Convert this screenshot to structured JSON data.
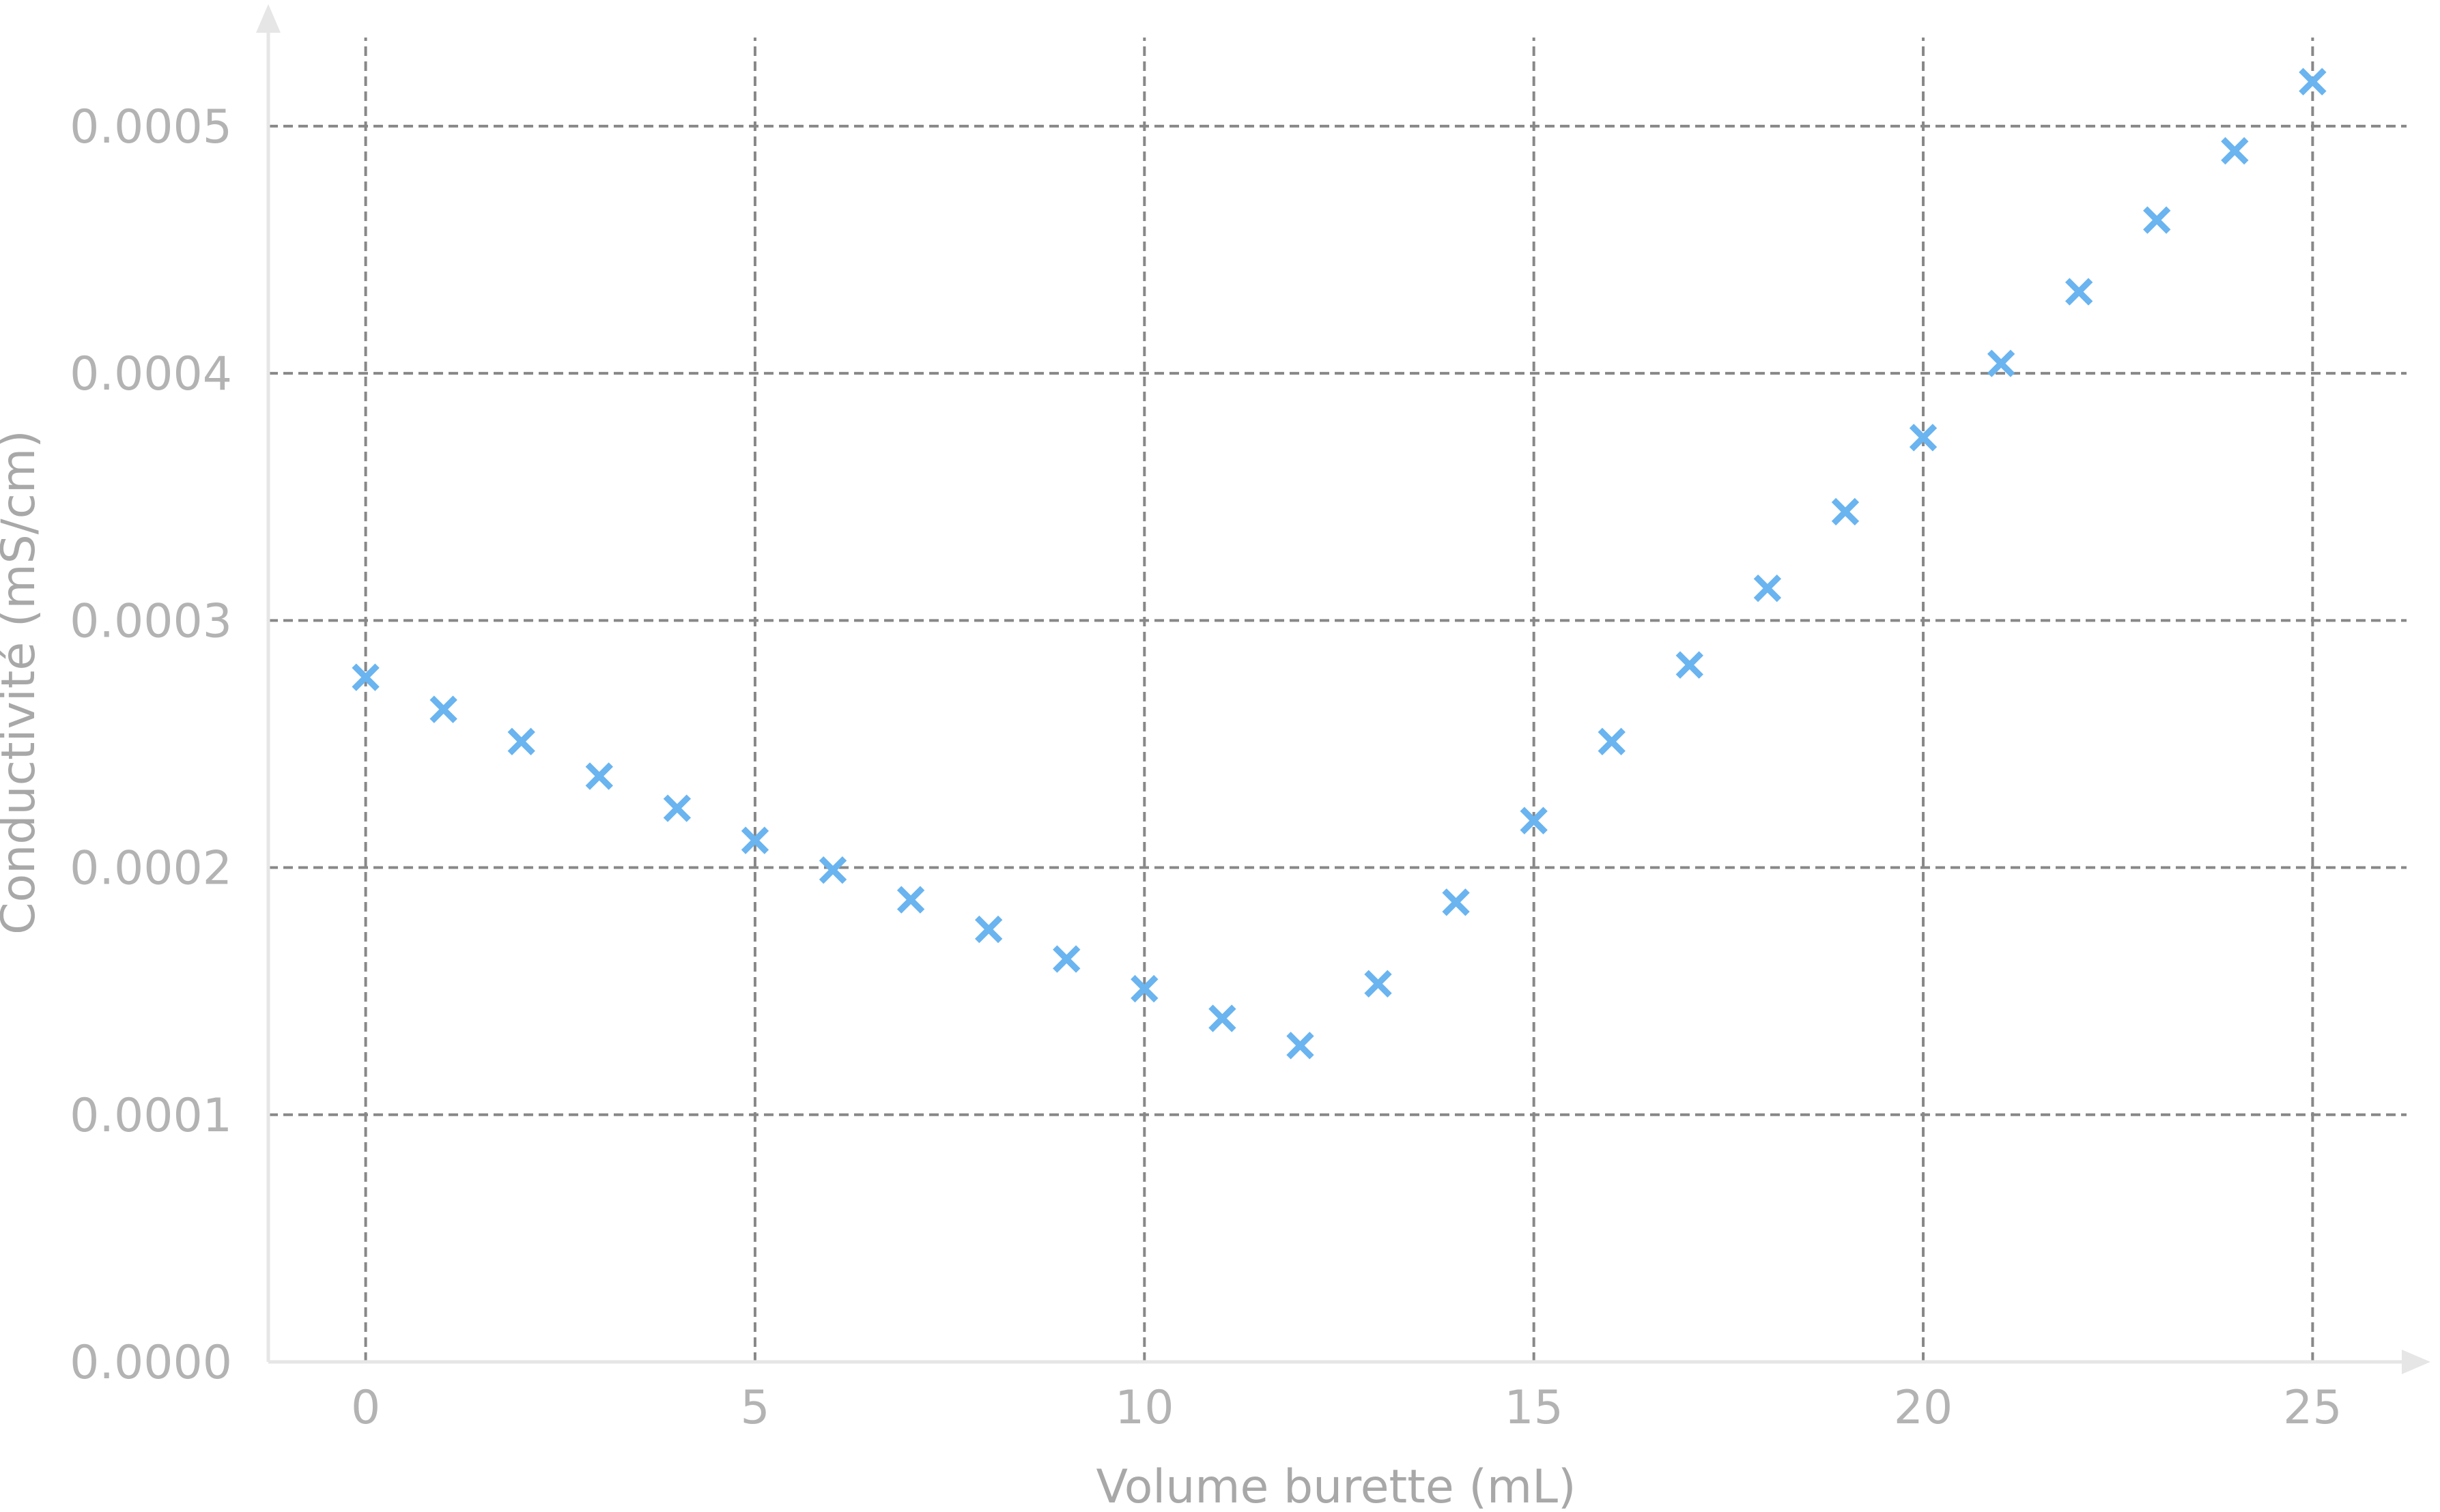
{
  "chart_data": {
    "type": "scatter",
    "title": "",
    "xlabel": "Volume burette (mL)",
    "ylabel": "Conductivité (mS/cm)",
    "xlim": [
      -1.25,
      26.25
    ],
    "ylim": [
      0,
      0.00054
    ],
    "xticks": [
      0,
      5,
      10,
      15,
      20,
      25
    ],
    "xtick_labels": [
      "0",
      "5",
      "10",
      "15",
      "20",
      "25"
    ],
    "yticks": [
      0,
      0.0001,
      0.0002,
      0.0003,
      0.0004,
      0.0005
    ],
    "ytick_labels": [
      "0.0000",
      "0.0001",
      "0.0002",
      "0.0003",
      "0.0004",
      "0.0005"
    ],
    "grid": true,
    "grid_style": "dashed",
    "marker": "x",
    "colors": {
      "marker": "#6ab4f0",
      "grid": "#888888",
      "axis": "#e6e6e6",
      "text": "#b3b3b3"
    },
    "series": [
      {
        "x": [
          0,
          1,
          2,
          3,
          4,
          5,
          6,
          7,
          8,
          9,
          10,
          11,
          12,
          13,
          14,
          15,
          16,
          17,
          18,
          19,
          20,
          21,
          22,
          23,
          24,
          25
        ],
        "y": [
          0.000277,
          0.000264,
          0.000251,
          0.000237,
          0.000224,
          0.000211,
          0.000199,
          0.000187,
          0.000175,
          0.000163,
          0.000151,
          0.000139,
          0.000128,
          0.000153,
          0.000186,
          0.000219,
          0.000251,
          0.000282,
          0.000313,
          0.000344,
          0.000374,
          0.000404,
          0.000433,
          0.000462,
          0.00049,
          0.000518
        ]
      }
    ]
  }
}
